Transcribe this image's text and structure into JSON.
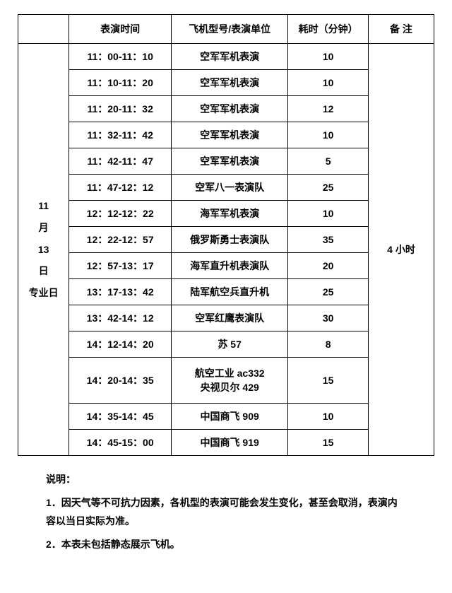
{
  "headers": {
    "date": "",
    "time": "表演时间",
    "unit": "飞机型号/表演单位",
    "duration": "耗时（分钟）",
    "note": "备 注"
  },
  "dateLabel": {
    "l1": "11",
    "l2": "月",
    "l3": "13",
    "l4": "日",
    "l5": "专业日"
  },
  "noteMerged": "4 小时",
  "rows": [
    {
      "time": "11：00-11：10",
      "unit": "空军军机表演",
      "dur": "10"
    },
    {
      "time": "11：10-11：20",
      "unit": "空军军机表演",
      "dur": "10"
    },
    {
      "time": "11：20-11：32",
      "unit": "空军军机表演",
      "dur": "12"
    },
    {
      "time": "11：32-11：42",
      "unit": "空军军机表演",
      "dur": "10"
    },
    {
      "time": "11：42-11：47",
      "unit": "空军军机表演",
      "dur": "5"
    },
    {
      "time": "11：47-12：12",
      "unit": "空军八一表演队",
      "dur": "25"
    },
    {
      "time": "12：12-12：22",
      "unit": "海军军机表演",
      "dur": "10"
    },
    {
      "time": "12：22-12：57",
      "unit": "俄罗斯勇士表演队",
      "dur": "35"
    },
    {
      "time": "12：57-13：17",
      "unit": "海军直升机表演队",
      "dur": "20"
    },
    {
      "time": "13：17-13：42",
      "unit": "陆军航空兵直升机",
      "dur": "25"
    },
    {
      "time": "13：42-14：12",
      "unit": "空军红鹰表演队",
      "dur": "30"
    },
    {
      "time": "14：12-14：20",
      "unit": "苏 57",
      "dur": "8"
    },
    {
      "time": "14：20-14：35",
      "unit": "航空工业 ac332\n央视贝尔 429",
      "dur": "15"
    },
    {
      "time": "14：35-14：45",
      "unit": "中国商飞 909",
      "dur": "10"
    },
    {
      "time": "14：45-15：00",
      "unit": "中国商飞 919",
      "dur": "15"
    }
  ],
  "notes": {
    "title": "说明：",
    "n1": "1．因天气等不可抗力因素，各机型的表演可能会发生变化，甚至会取消，表演内容以当日实际为准。",
    "n2": "2．本表未包括静态展示飞机。"
  },
  "style": {
    "border_color": "#000000",
    "background_color": "#ffffff",
    "font_weight": "bold",
    "cell_fontsize": 14
  }
}
